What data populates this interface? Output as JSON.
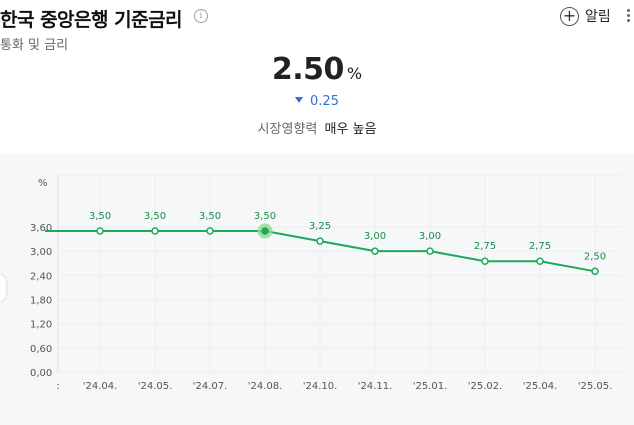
{
  "header": {
    "title": "한국 중앙은행 기준금리",
    "subtitle": "통화 및 금리",
    "alarm_label": "알림"
  },
  "rate": {
    "value": "2.50",
    "unit": "%",
    "change": "0.25",
    "impact_label": "시장영향력",
    "impact_level": "매우 높음"
  },
  "colors": {
    "line": "#1ea85a",
    "change": "#2b73d7",
    "highlight": "#8fdc8f"
  },
  "chart_data": {
    "type": "line",
    "ylabel": "%",
    "ylim": [
      0,
      3.6
    ],
    "yticks": [
      "0,00",
      "0,60",
      "1,20",
      "1,80",
      "2,40",
      "3,00",
      "3,60"
    ],
    "categories": [
      "",
      "'24.04",
      "'24.05",
      "'24.07",
      "'24.08",
      "'24.10",
      "'24.11",
      "'25.01",
      "'25.02",
      "'25.04",
      "'25.05"
    ],
    "category_labels": [
      ":",
      "'24.04.",
      "'24.05.",
      "'24.07.",
      "'24.08.",
      "'24.10.",
      "'24.11.",
      "'25.01.",
      "'25.02.",
      "'25.04.",
      "'25.05."
    ],
    "values": [
      3.5,
      3.5,
      3.5,
      3.5,
      3.5,
      3.25,
      3.0,
      3.0,
      2.75,
      2.75,
      2.5
    ],
    "data_labels": [
      "",
      "3,50",
      "3,50",
      "3,50",
      "3,50",
      "3,25",
      "3,00",
      "3,00",
      "2,75",
      "2,75",
      "2,50"
    ],
    "highlight_index": 4,
    "grid": true
  }
}
